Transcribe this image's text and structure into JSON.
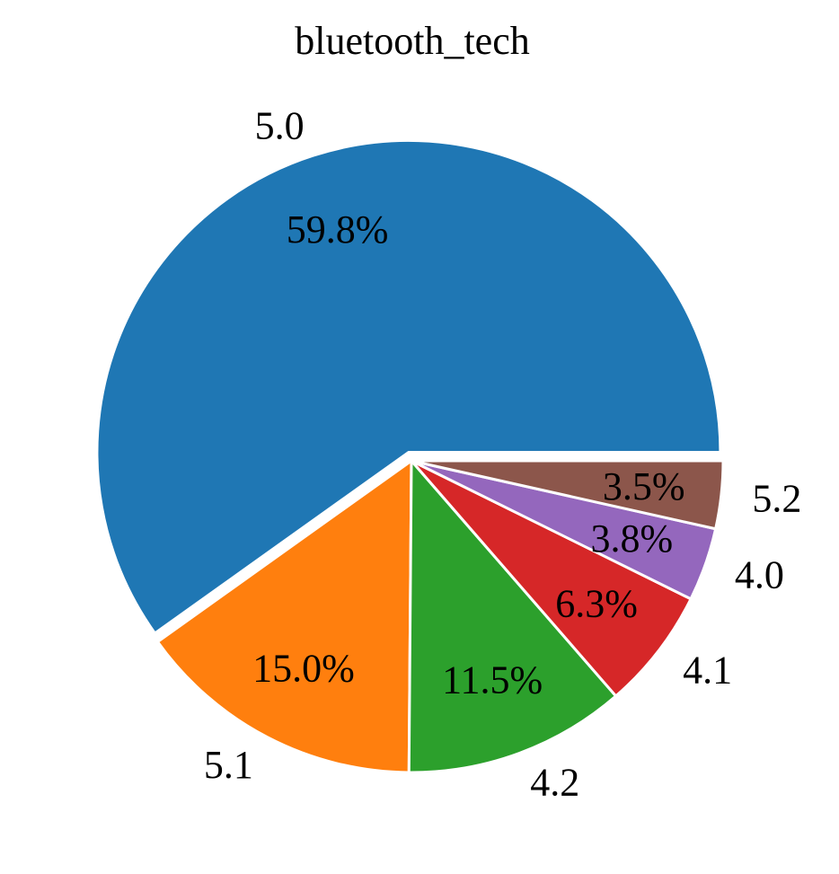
{
  "chart_data": {
    "type": "pie",
    "title": "bluetooth_tech",
    "slices": [
      {
        "label": "5.0",
        "value": 59.8,
        "pct_text": "59.8%",
        "color": "#1f77b4",
        "explode": true
      },
      {
        "label": "5.1",
        "value": 15.0,
        "pct_text": "15.0%",
        "color": "#ff7f0e",
        "explode": false
      },
      {
        "label": "4.2",
        "value": 11.5,
        "pct_text": "11.5%",
        "color": "#2ca02c",
        "explode": false
      },
      {
        "label": "4.1",
        "value": 6.3,
        "pct_text": "6.3%",
        "color": "#d62728",
        "explode": false
      },
      {
        "label": "4.0",
        "value": 3.8,
        "pct_text": "3.8%",
        "color": "#9467bd",
        "explode": false
      },
      {
        "label": "5.2",
        "value": 3.5,
        "pct_text": "3.5%",
        "color": "#8c564b",
        "explode": false
      }
    ],
    "start_angle": 0,
    "direction": "counterclockwise"
  }
}
